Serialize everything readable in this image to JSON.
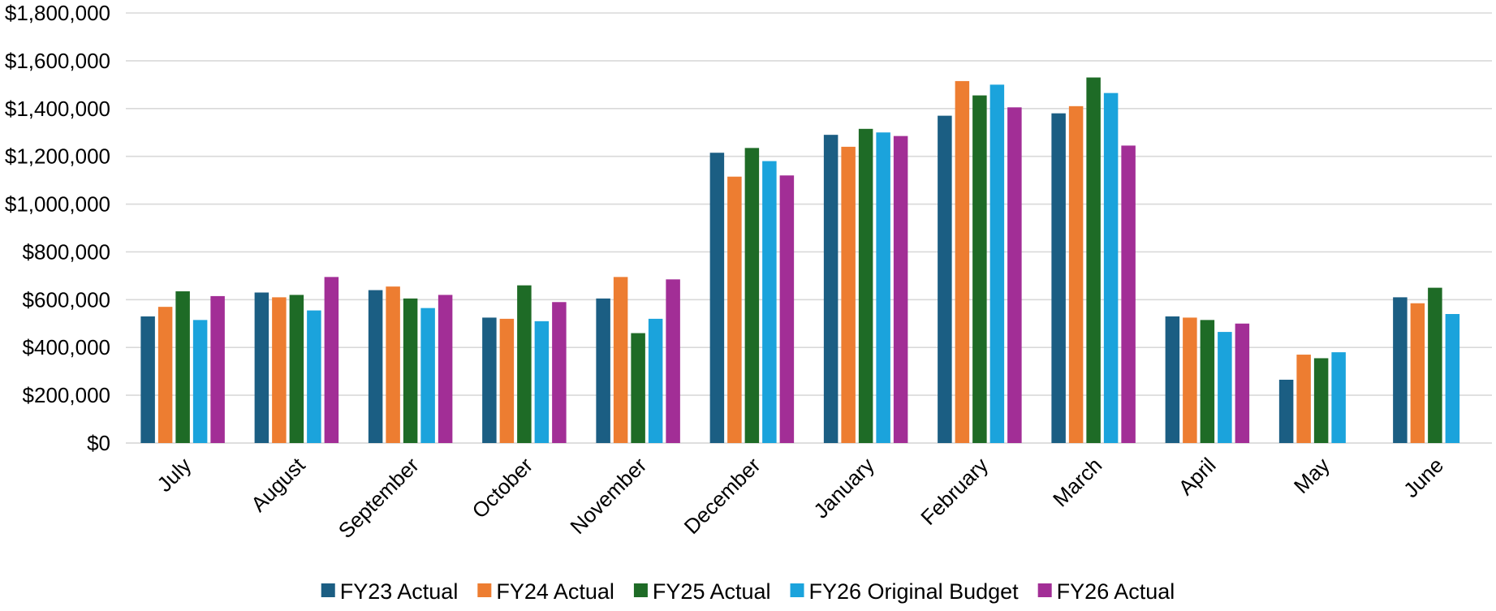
{
  "chart_data": {
    "type": "bar",
    "title": "",
    "xlabel": "",
    "ylabel": "",
    "ylim": [
      0,
      1800000
    ],
    "yticks": [
      0,
      200000,
      400000,
      600000,
      800000,
      1000000,
      1200000,
      1400000,
      1600000,
      1800000
    ],
    "ytick_labels": [
      "$0",
      "$200,000",
      "$400,000",
      "$600,000",
      "$800,000",
      "$1,000,000",
      "$1,200,000",
      "$1,400,000",
      "$1,600,000",
      "$1,800,000"
    ],
    "grid": true,
    "legend_position": "bottom",
    "categories": [
      "July",
      "August",
      "September",
      "October",
      "November",
      "December",
      "January",
      "February",
      "March",
      "April",
      "May",
      "June"
    ],
    "series": [
      {
        "name": "FY23 Actual",
        "color": "#1B5E83",
        "values": [
          530000,
          630000,
          640000,
          525000,
          605000,
          1215000,
          1290000,
          1370000,
          1380000,
          530000,
          265000,
          610000
        ]
      },
      {
        "name": "FY24 Actual",
        "color": "#ED7D31",
        "values": [
          570000,
          610000,
          655000,
          520000,
          695000,
          1115000,
          1240000,
          1515000,
          1410000,
          525000,
          370000,
          585000
        ]
      },
      {
        "name": "FY25 Actual",
        "color": "#1E6B26",
        "values": [
          635000,
          620000,
          605000,
          660000,
          460000,
          1235000,
          1315000,
          1455000,
          1530000,
          515000,
          355000,
          650000
        ]
      },
      {
        "name": "FY26 Original Budget",
        "color": "#1BA3DC",
        "values": [
          515000,
          555000,
          565000,
          510000,
          520000,
          1180000,
          1300000,
          1500000,
          1465000,
          465000,
          380000,
          540000
        ]
      },
      {
        "name": "FY26 Actual",
        "color": "#A22E96",
        "values": [
          615000,
          695000,
          620000,
          590000,
          685000,
          1120000,
          1285000,
          1405000,
          1245000,
          500000,
          null,
          null
        ]
      }
    ]
  }
}
